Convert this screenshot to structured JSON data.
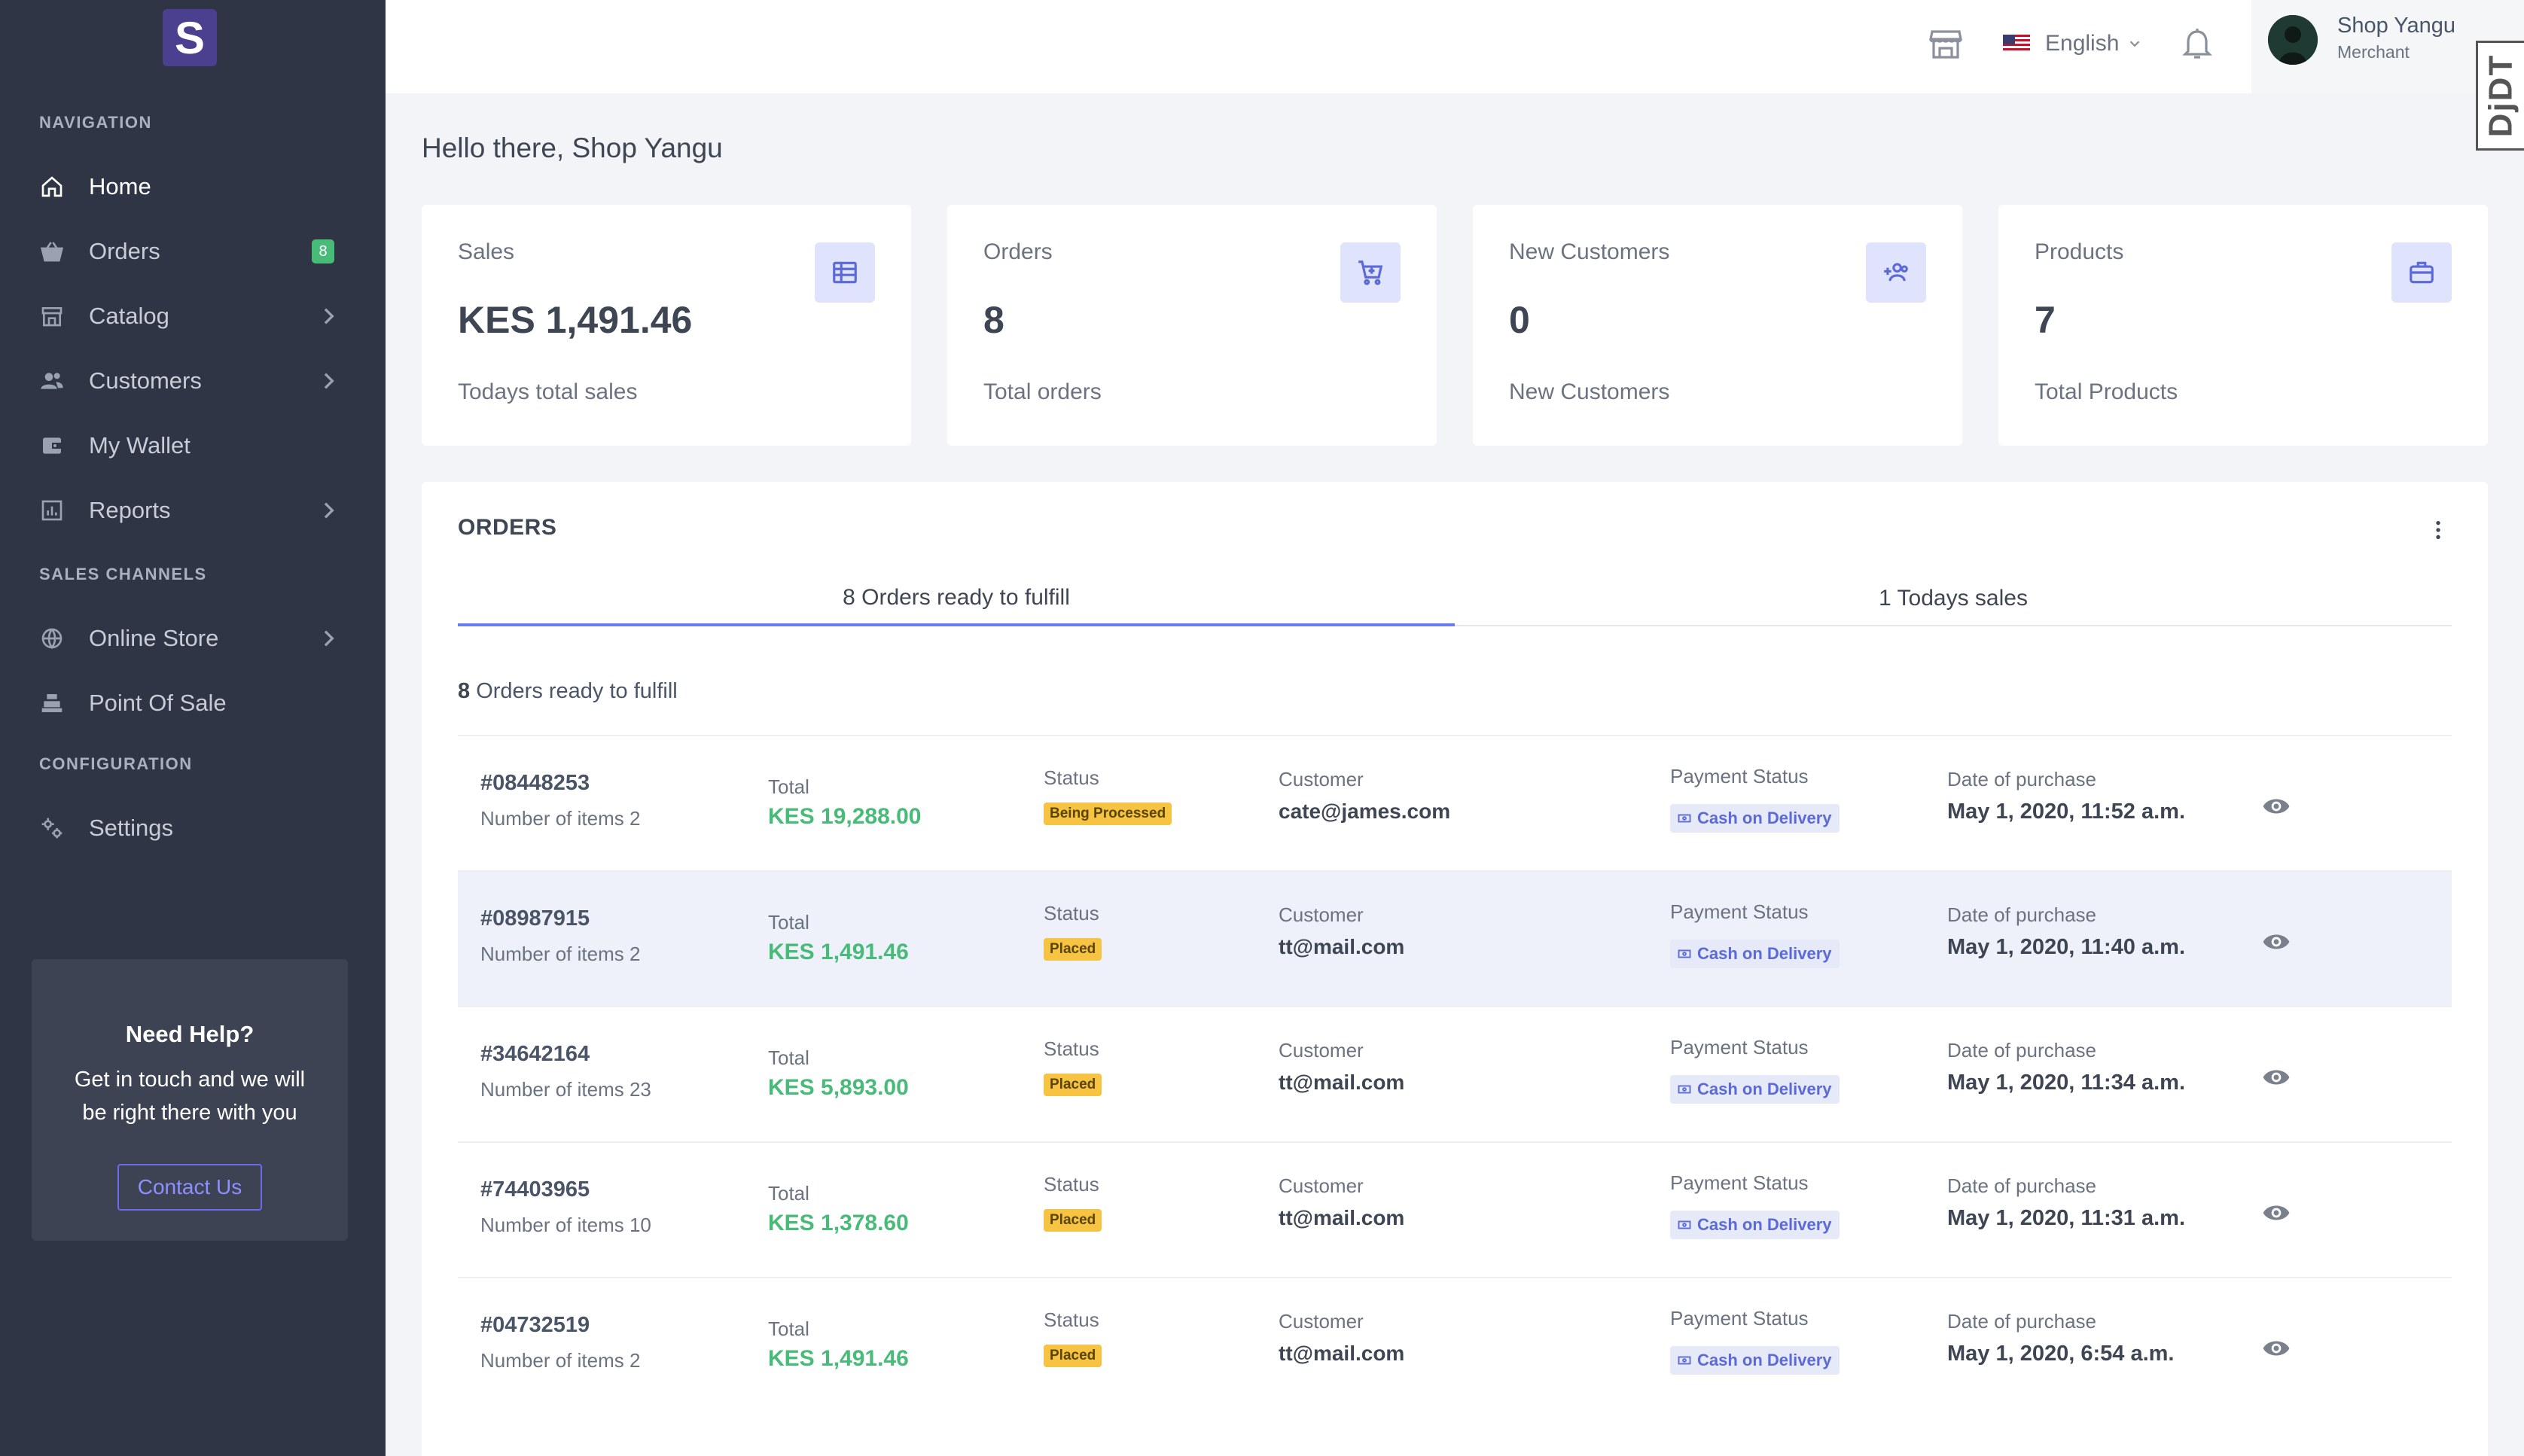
{
  "brand": {
    "logo_letter": "S"
  },
  "sidebar": {
    "section_navigation": "NAVIGATION",
    "section_sales_channels": "SALES CHANNELS",
    "section_configuration": "CONFIGURATION",
    "items": {
      "home": {
        "label": "Home",
        "icon": "home-icon"
      },
      "orders": {
        "label": "Orders",
        "icon": "basket-icon",
        "badge": "8"
      },
      "catalog": {
        "label": "Catalog",
        "icon": "store-icon"
      },
      "customers": {
        "label": "Customers",
        "icon": "users-icon"
      },
      "wallet": {
        "label": "My Wallet",
        "icon": "wallet-icon"
      },
      "reports": {
        "label": "Reports",
        "icon": "chart-icon"
      },
      "online_store": {
        "label": "Online Store",
        "icon": "globe-icon"
      },
      "pos": {
        "label": "Point Of Sale",
        "icon": "register-icon"
      },
      "settings": {
        "label": "Settings",
        "icon": "gears-icon"
      }
    },
    "help": {
      "title": "Need Help?",
      "text": "Get in touch and we will be right there with you",
      "button": "Contact Us"
    }
  },
  "topbar": {
    "language": "English",
    "user_name": "Shop Yangu",
    "user_role": "Merchant",
    "extension_tab": "DjDT"
  },
  "greeting": "Hello there, Shop Yangu",
  "stats": {
    "sales": {
      "label": "Sales",
      "value": "KES 1,491.46",
      "sub": "Todays total sales"
    },
    "orders": {
      "label": "Orders",
      "value": "8",
      "sub": "Total orders"
    },
    "new_customers": {
      "label": "New Customers",
      "value": "0",
      "sub": "New Customers"
    },
    "products": {
      "label": "Products",
      "value": "7",
      "sub": "Total Products"
    }
  },
  "orders_panel": {
    "title": "ORDERS",
    "tab_fulfill": "8 Orders ready to fulfill",
    "tab_sales": "1 Todays sales",
    "count": "8",
    "count_text": "Orders ready to fulfill",
    "labels": {
      "total": "Total",
      "status": "Status",
      "customer": "Customer",
      "payment_status": "Payment Status",
      "date": "Date of purchase"
    },
    "rows": [
      {
        "id": "#08448253",
        "items": "Number of items 2",
        "total": "KES 19,288.00",
        "status": "Being Processed",
        "customer": "cate@james.com",
        "payment": "Cash on Delivery",
        "date": "May 1, 2020, 11:52 a.m."
      },
      {
        "id": "#08987915",
        "items": "Number of items 2",
        "total": "KES 1,491.46",
        "status": "Placed",
        "customer": "tt@mail.com",
        "payment": "Cash on Delivery",
        "date": "May 1, 2020, 11:40 a.m."
      },
      {
        "id": "#34642164",
        "items": "Number of items 23",
        "total": "KES 5,893.00",
        "status": "Placed",
        "customer": "tt@mail.com",
        "payment": "Cash on Delivery",
        "date": "May 1, 2020, 11:34 a.m."
      },
      {
        "id": "#74403965",
        "items": "Number of items 10",
        "total": "KES 1,378.60",
        "status": "Placed",
        "customer": "tt@mail.com",
        "payment": "Cash on Delivery",
        "date": "May 1, 2020, 11:31 a.m."
      },
      {
        "id": "#04732519",
        "items": "Number of items 2",
        "total": "KES 1,491.46",
        "status": "Placed",
        "customer": "tt@mail.com",
        "payment": "Cash on Delivery",
        "date": "May 1, 2020, 6:54 a.m."
      }
    ]
  },
  "colors": {
    "sidebar_bg": "#2f3545",
    "accent": "#6b7cf0",
    "money_green": "#48bb78",
    "status_yellow": "#f6c343",
    "icon_tile_bg": "#dfe3fb"
  }
}
